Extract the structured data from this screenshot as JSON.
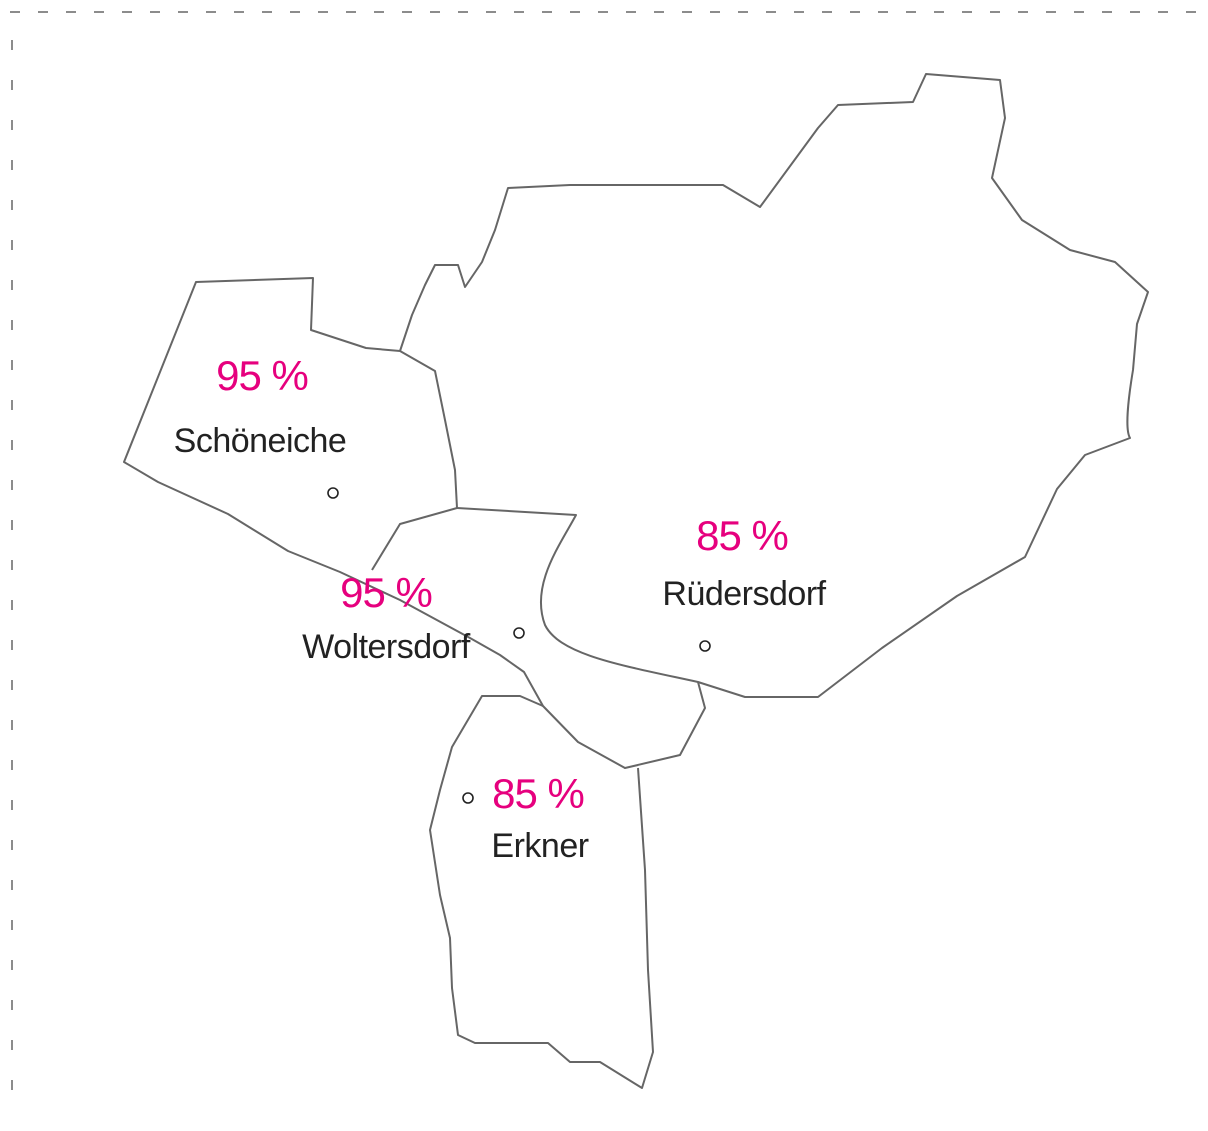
{
  "regions": [
    {
      "name": "Schöneiche",
      "percent": "95 %"
    },
    {
      "name": "Woltersdorf",
      "percent": "95 %"
    },
    {
      "name": "Rüdersdorf",
      "percent": "85 %"
    },
    {
      "name": "Erkner",
      "percent": "85 %"
    }
  ]
}
